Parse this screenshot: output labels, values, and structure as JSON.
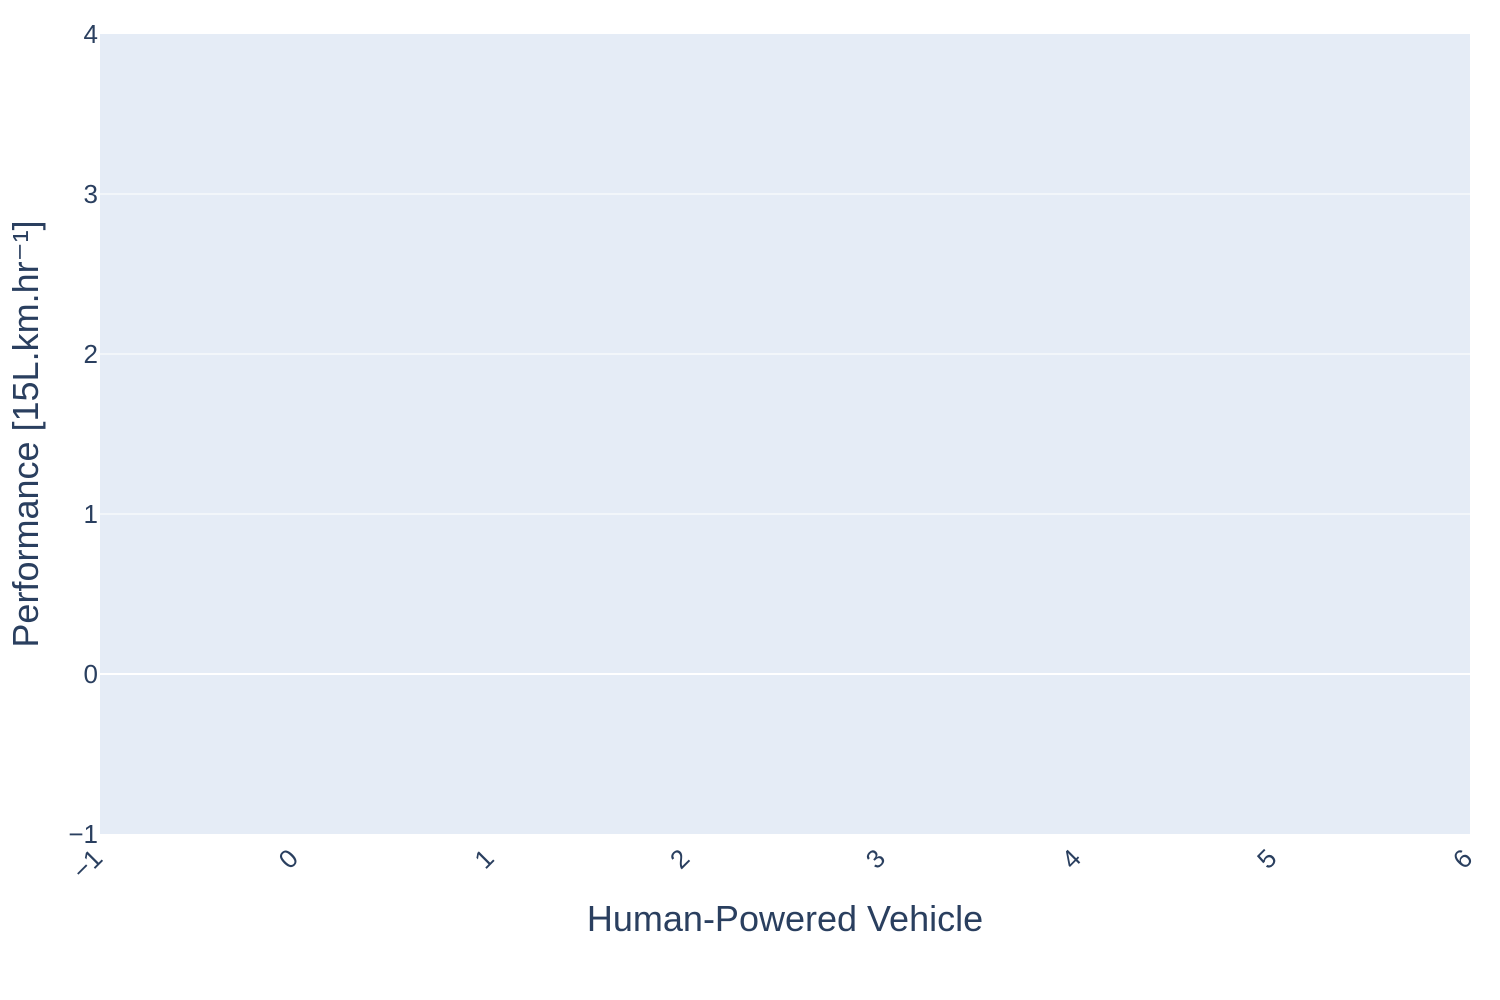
{
  "chart_data": {
    "type": "scatter",
    "title": "",
    "xlabel": "Human-Powered Vehicle",
    "ylabel": "Performance [15L.km.hr⁻¹]",
    "xlim": [
      -1,
      6
    ],
    "ylim": [
      -1,
      4
    ],
    "x_ticks": [
      "−1",
      "0",
      "1",
      "2",
      "3",
      "4",
      "5",
      "6"
    ],
    "y_ticks": [
      "−1",
      "0",
      "1",
      "2",
      "3",
      "4"
    ],
    "grid": true,
    "legend": "none",
    "series": []
  },
  "colors": {
    "plot_background": "#e5ecf6",
    "grid": "#ffffff",
    "text": "#2a3f5f"
  }
}
